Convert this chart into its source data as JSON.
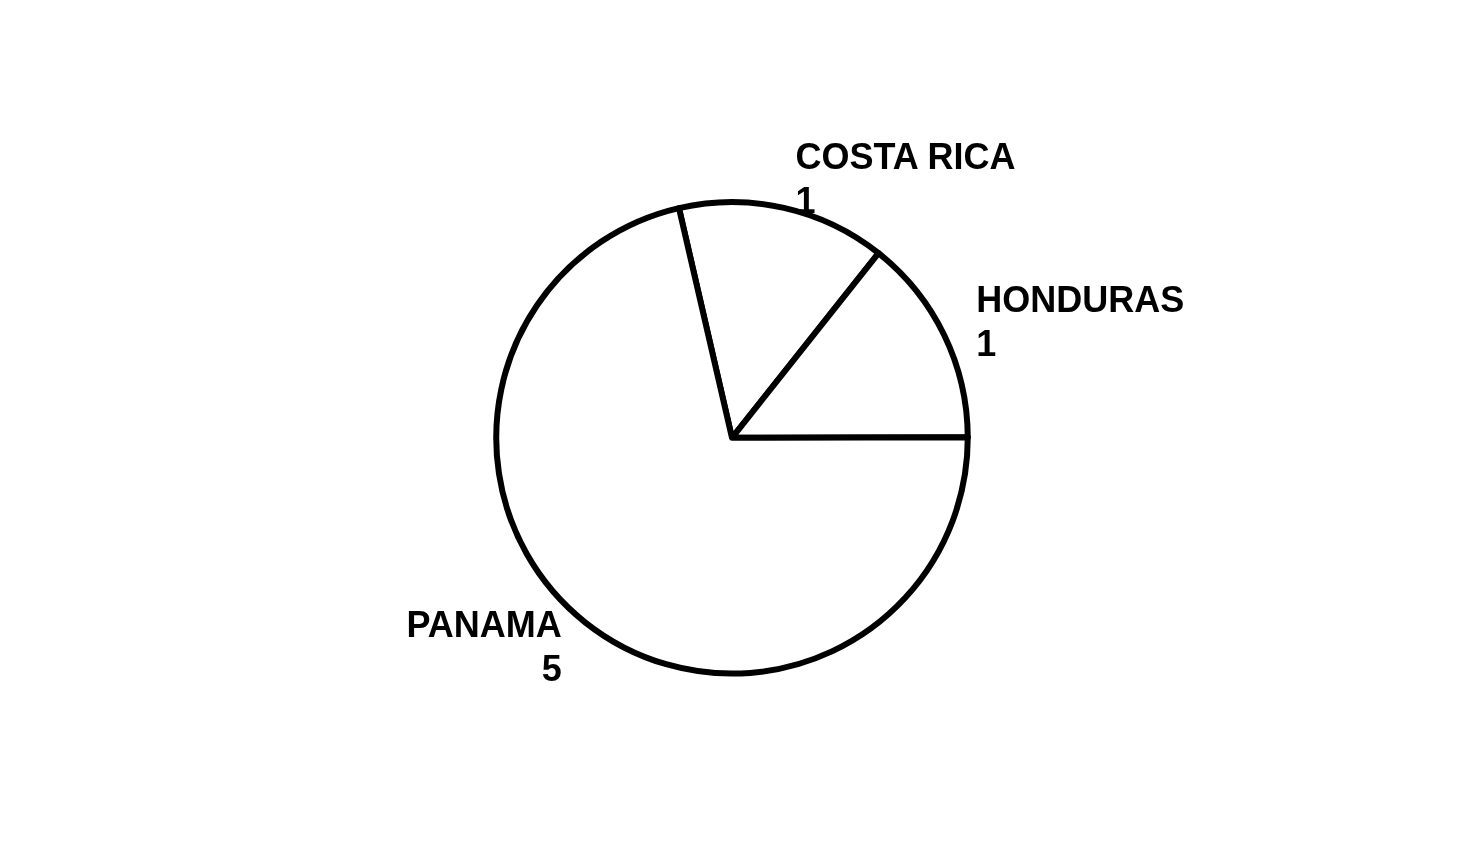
{
  "chart_data": {
    "type": "pie",
    "categories": [
      "COSTA RICA",
      "HONDURAS",
      "PANAMA"
    ],
    "values": [
      1,
      1,
      5
    ],
    "colors": [
      "#ffffff",
      "#ffffff",
      "#ffffff"
    ],
    "data_labels": true
  }
}
